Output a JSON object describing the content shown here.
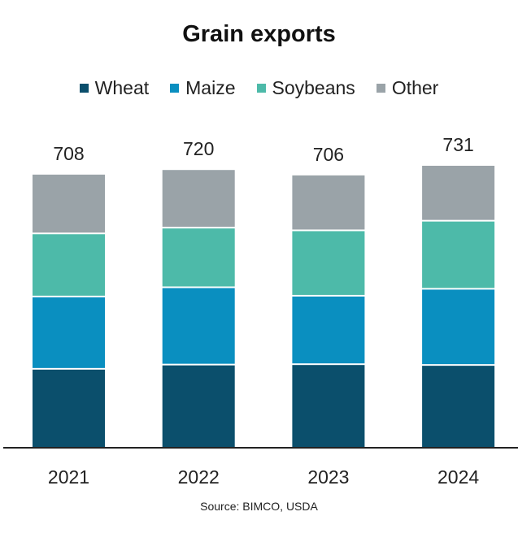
{
  "chart_data": {
    "type": "bar",
    "stacked": true,
    "title": "Grain exports",
    "categories": [
      "2021",
      "2022",
      "2023",
      "2024"
    ],
    "totals": [
      708,
      720,
      706,
      731
    ],
    "series": [
      {
        "name": "Wheat",
        "color": "#0b4f6c",
        "values": [
          201,
          212,
          213,
          211
        ]
      },
      {
        "name": "Maize",
        "color": "#0a8fc0",
        "values": [
          188,
          201,
          178,
          198
        ]
      },
      {
        "name": "Soybeans",
        "color": "#4dbaa9",
        "values": [
          164,
          155,
          170,
          177
        ]
      },
      {
        "name": "Other",
        "color": "#9aa3a8",
        "values": [
          155,
          152,
          145,
          145
        ]
      }
    ],
    "xlabel": "",
    "ylabel": "",
    "ylim": [
      0,
      731
    ],
    "grid": false,
    "legend_position": "top",
    "source": "Source: BIMCO, USDA"
  }
}
